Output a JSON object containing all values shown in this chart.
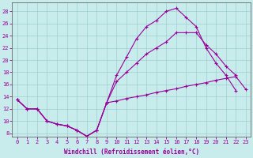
{
  "background_color": "#c8ecec",
  "line_color": "#990099",
  "grid_color": "#9dcfcf",
  "xlabel": "Windchill (Refroidissement éolien,°C)",
  "xlim": [
    -0.5,
    23.5
  ],
  "ylim": [
    7.5,
    29.5
  ],
  "yticks": [
    8,
    10,
    12,
    14,
    16,
    18,
    20,
    22,
    24,
    26,
    28
  ],
  "xticks": [
    0,
    1,
    2,
    3,
    4,
    5,
    6,
    7,
    8,
    9,
    10,
    11,
    12,
    13,
    14,
    15,
    16,
    17,
    18,
    19,
    20,
    21,
    22,
    23
  ],
  "line1_x": [
    0,
    1,
    2,
    3,
    4,
    5,
    6,
    7,
    8,
    9,
    10,
    11,
    12,
    13,
    14,
    15,
    16,
    17,
    18,
    19,
    20,
    21,
    22
  ],
  "line1_y": [
    13.5,
    12.0,
    12.0,
    10.0,
    9.5,
    9.2,
    8.5,
    7.5,
    8.5,
    13.0,
    17.5,
    20.5,
    23.5,
    25.5,
    26.5,
    28.0,
    28.5,
    27.0,
    25.5,
    22.0,
    19.5,
    17.5,
    15.0
  ],
  "line2_x": [
    0,
    1,
    2,
    3,
    4,
    5,
    6,
    7,
    8,
    9,
    10,
    11,
    12,
    13,
    14,
    15,
    16,
    17,
    18,
    19,
    20,
    21,
    22
  ],
  "line2_y": [
    13.5,
    12.0,
    12.0,
    10.0,
    9.5,
    9.2,
    8.5,
    7.5,
    8.5,
    13.0,
    16.5,
    18.0,
    19.5,
    21.0,
    22.0,
    23.0,
    24.5,
    24.5,
    24.5,
    22.5,
    21.0,
    19.0,
    17.5
  ],
  "line3_x": [
    0,
    1,
    2,
    3,
    4,
    5,
    6,
    7,
    8,
    9,
    10,
    11,
    12,
    13,
    14,
    15,
    16,
    17,
    18,
    19,
    20,
    21,
    22,
    23
  ],
  "line3_y": [
    13.5,
    12.0,
    12.0,
    10.0,
    9.5,
    9.2,
    8.5,
    7.5,
    8.5,
    13.0,
    13.3,
    13.7,
    14.0,
    14.3,
    14.7,
    15.0,
    15.3,
    15.7,
    16.0,
    16.3,
    16.7,
    17.0,
    17.3,
    15.2
  ],
  "marker_size": 2.0,
  "linewidth": 0.8,
  "tick_labelsize": 5.0,
  "xlabel_fontsize": 5.5
}
